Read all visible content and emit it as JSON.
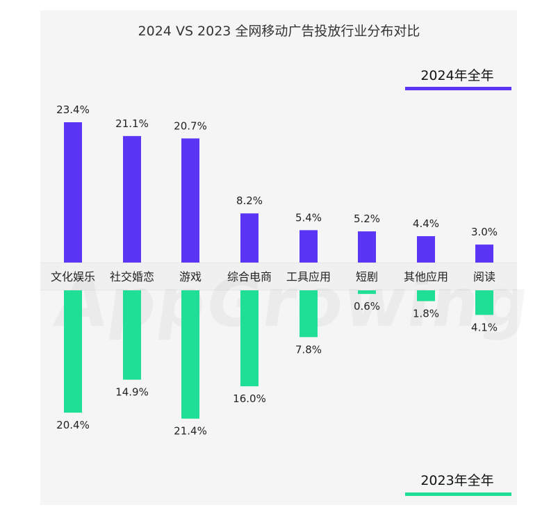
{
  "chart_data": {
    "type": "bar",
    "title": "2024 VS 2023 全网移动广告投放行业分布对比",
    "categories": [
      "文化娱乐",
      "社交婚恋",
      "游戏",
      "综合电商",
      "工具应用",
      "短剧",
      "其他应用",
      "阅读"
    ],
    "series": [
      {
        "name": "2024年全年",
        "color": "#5b35f5",
        "direction": "up",
        "values": [
          23.4,
          21.1,
          20.7,
          8.2,
          5.4,
          5.2,
          4.4,
          3.0
        ],
        "labels": [
          "23.4%",
          "21.1%",
          "20.7%",
          "8.2%",
          "5.4%",
          "5.2%",
          "4.4%",
          "3.0%"
        ]
      },
      {
        "name": "2023年全年",
        "color": "#1fdf96",
        "direction": "down",
        "values": [
          20.4,
          14.9,
          21.4,
          16.0,
          7.8,
          0.6,
          1.8,
          4.1
        ],
        "labels": [
          "20.4%",
          "14.9%",
          "21.4%",
          "16.0%",
          "7.8%",
          "0.6%",
          "1.8%",
          "4.1%"
        ]
      }
    ],
    "unit": "%",
    "ylim": [
      0,
      23.4
    ]
  },
  "legend": {
    "top_label": "2024年全年",
    "bottom_label": "2023年全年"
  },
  "watermark": "AppGrowing"
}
